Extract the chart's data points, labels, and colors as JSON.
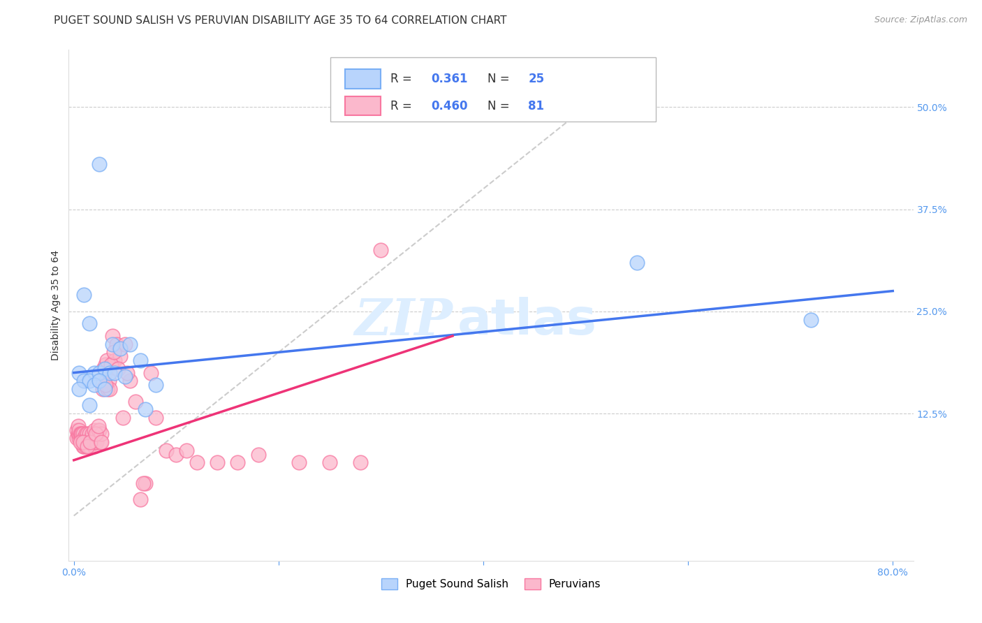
{
  "title": "PUGET SOUND SALISH VS PERUVIAN DISABILITY AGE 35 TO 64 CORRELATION CHART",
  "source": "Source: ZipAtlas.com",
  "xlabel_ticks": [
    "0.0%",
    "",
    "",
    "",
    "80.0%"
  ],
  "xlabel_values": [
    0.0,
    0.2,
    0.4,
    0.6,
    0.8
  ],
  "ylabel_ticks": [
    "12.5%",
    "25.0%",
    "37.5%",
    "50.0%"
  ],
  "ylabel_values": [
    0.125,
    0.25,
    0.375,
    0.5
  ],
  "xlim": [
    -0.005,
    0.82
  ],
  "ylim": [
    -0.055,
    0.57
  ],
  "legend_label1": "Puget Sound Salish",
  "legend_label2": "Peruvians",
  "R1": "0.361",
  "N1": "25",
  "R2": "0.460",
  "N2": "81",
  "blue_color": "#7aaff5",
  "pink_color": "#f877a0",
  "blue_fill": "#b8d4fc",
  "pink_fill": "#fbb8cc",
  "watermark_zip": "ZIP",
  "watermark_atlas": "atlas",
  "blue_scatter_x": [
    0.025,
    0.01,
    0.015,
    0.02,
    0.005,
    0.01,
    0.015,
    0.025,
    0.03,
    0.035,
    0.02,
    0.025,
    0.03,
    0.04,
    0.05,
    0.065,
    0.08,
    0.55,
    0.72,
    0.005,
    0.015,
    0.038,
    0.045,
    0.055,
    0.07
  ],
  "blue_scatter_y": [
    0.43,
    0.27,
    0.235,
    0.175,
    0.175,
    0.165,
    0.165,
    0.175,
    0.18,
    0.175,
    0.16,
    0.165,
    0.155,
    0.175,
    0.17,
    0.19,
    0.16,
    0.31,
    0.24,
    0.155,
    0.135,
    0.21,
    0.205,
    0.21,
    0.13
  ],
  "pink_scatter_x": [
    0.003,
    0.003,
    0.004,
    0.004,
    0.005,
    0.005,
    0.005,
    0.006,
    0.007,
    0.007,
    0.008,
    0.008,
    0.009,
    0.009,
    0.01,
    0.01,
    0.011,
    0.012,
    0.012,
    0.013,
    0.014,
    0.015,
    0.015,
    0.016,
    0.017,
    0.018,
    0.018,
    0.019,
    0.02,
    0.02,
    0.021,
    0.022,
    0.023,
    0.024,
    0.025,
    0.026,
    0.027,
    0.028,
    0.029,
    0.03,
    0.031,
    0.032,
    0.033,
    0.034,
    0.035,
    0.038,
    0.04,
    0.042,
    0.045,
    0.048,
    0.05,
    0.055,
    0.06,
    0.065,
    0.07,
    0.075,
    0.08,
    0.09,
    0.1,
    0.11,
    0.12,
    0.14,
    0.16,
    0.18,
    0.22,
    0.25,
    0.28,
    0.006,
    0.009,
    0.013,
    0.016,
    0.021,
    0.024,
    0.027,
    0.031,
    0.036,
    0.039,
    0.043,
    0.052,
    0.068,
    0.3
  ],
  "pink_scatter_y": [
    0.095,
    0.105,
    0.1,
    0.11,
    0.095,
    0.1,
    0.105,
    0.1,
    0.095,
    0.1,
    0.1,
    0.09,
    0.1,
    0.085,
    0.085,
    0.095,
    0.09,
    0.1,
    0.085,
    0.1,
    0.09,
    0.1,
    0.085,
    0.09,
    0.095,
    0.09,
    0.1,
    0.09,
    0.085,
    0.105,
    0.09,
    0.09,
    0.1,
    0.105,
    0.105,
    0.09,
    0.1,
    0.155,
    0.18,
    0.175,
    0.185,
    0.19,
    0.155,
    0.165,
    0.155,
    0.22,
    0.19,
    0.21,
    0.195,
    0.12,
    0.21,
    0.165,
    0.14,
    0.02,
    0.04,
    0.175,
    0.12,
    0.08,
    0.075,
    0.08,
    0.065,
    0.065,
    0.065,
    0.075,
    0.065,
    0.065,
    0.065,
    0.09,
    0.09,
    0.085,
    0.09,
    0.1,
    0.11,
    0.09,
    0.16,
    0.185,
    0.2,
    0.18,
    0.175,
    0.04,
    0.325
  ],
  "blue_line_x": [
    0.0,
    0.8
  ],
  "blue_line_y": [
    0.175,
    0.275
  ],
  "pink_line_x": [
    0.0,
    0.37
  ],
  "pink_line_y": [
    0.068,
    0.22
  ],
  "ref_line_x": [
    0.0,
    0.56
  ],
  "ref_line_y": [
    0.0,
    0.56
  ],
  "title_fontsize": 11,
  "axis_label_fontsize": 10,
  "tick_fontsize": 10,
  "watermark_fontsize_zip": 52,
  "watermark_fontsize_atlas": 52,
  "watermark_color": "#ddeeff",
  "background_color": "#ffffff",
  "grid_color": "#cccccc"
}
